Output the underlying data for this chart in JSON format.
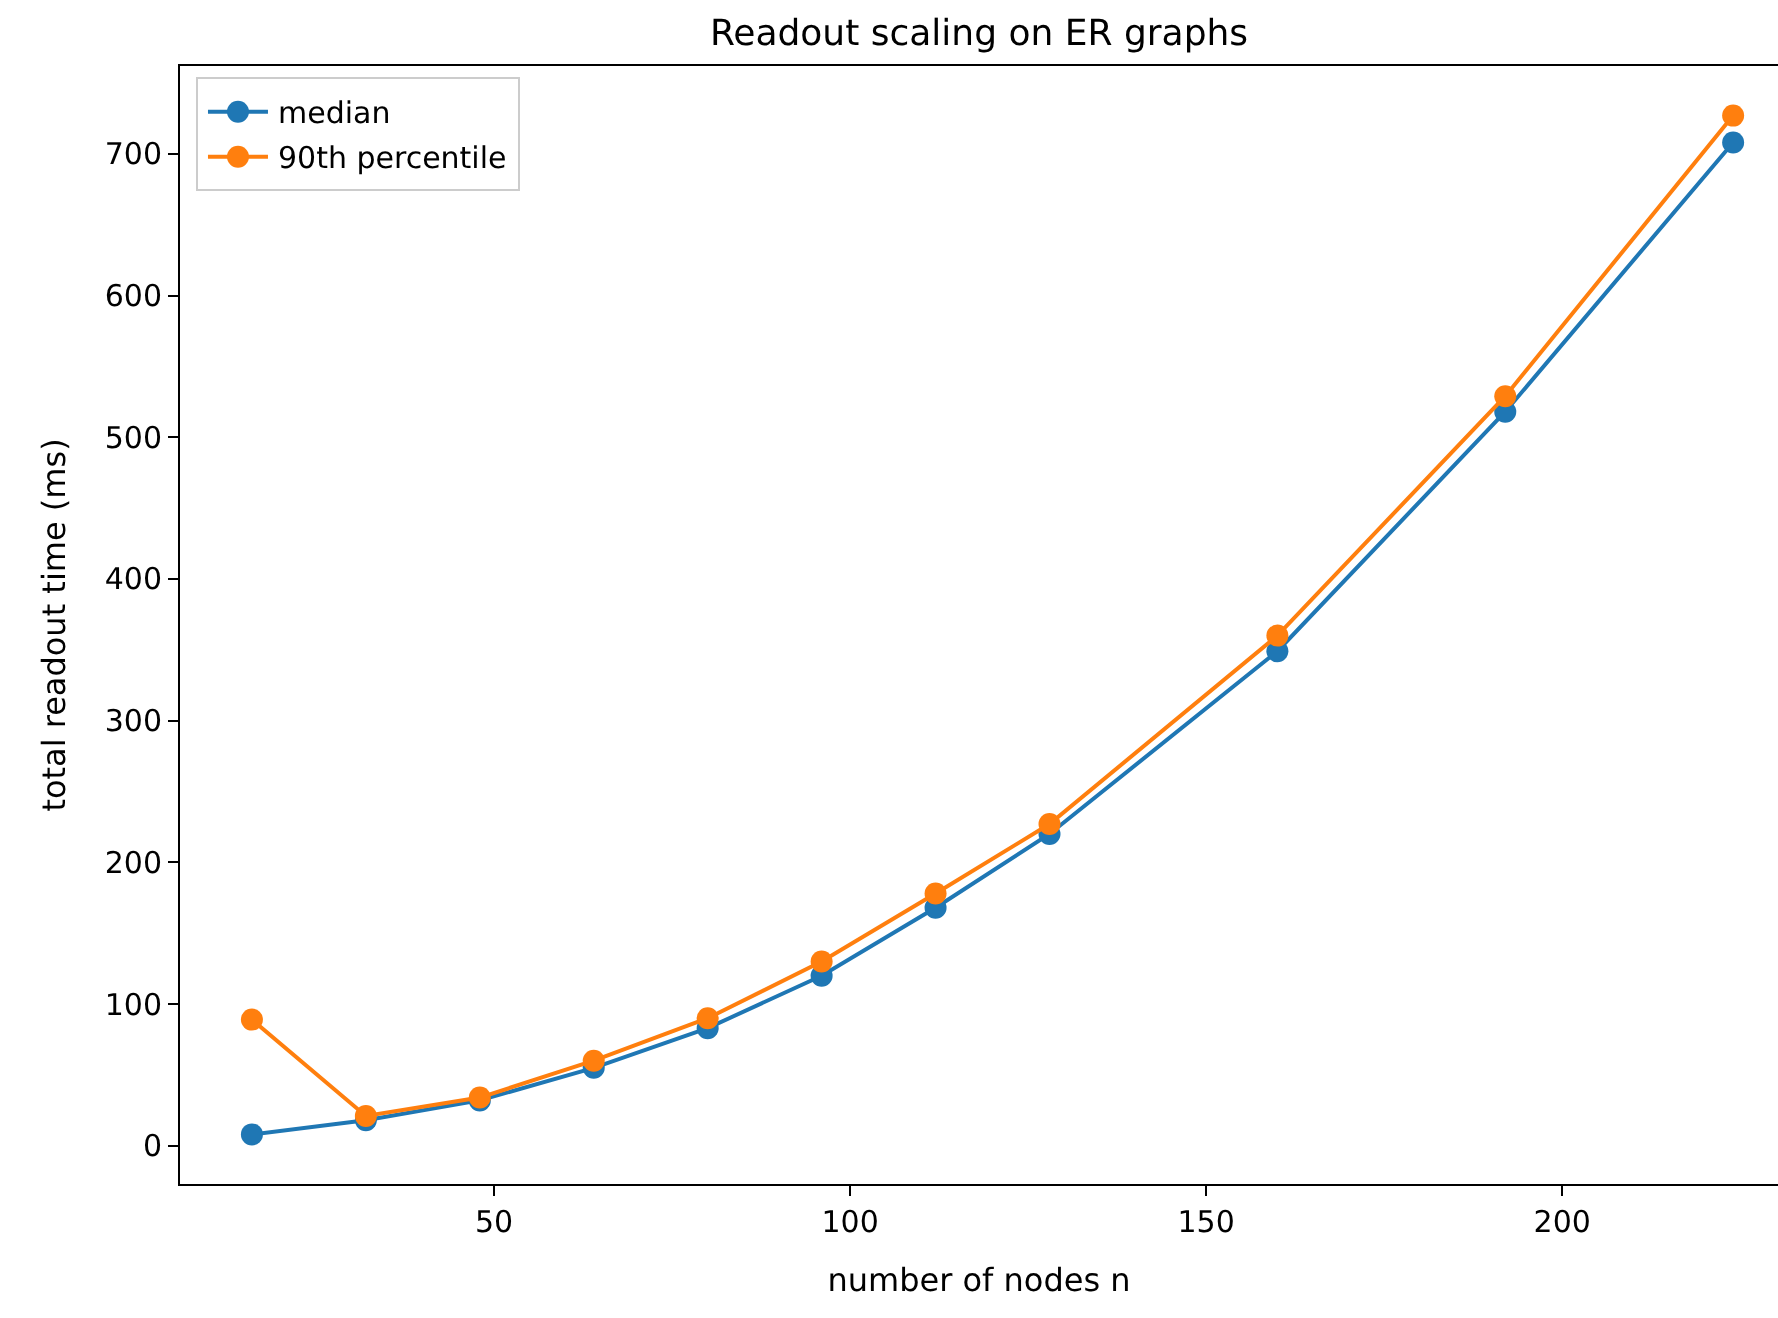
{
  "chart_data": {
    "type": "line",
    "title": "Readout scaling on ER graphs",
    "xlabel": "number of nodes n",
    "ylabel": "total readout time (ms)",
    "x": [
      16,
      32,
      48,
      64,
      80,
      96,
      112,
      128,
      160,
      192,
      224
    ],
    "series": [
      {
        "name": "median",
        "color": "#1f77b4",
        "values": [
          8,
          18,
          32,
          55,
          83,
          120,
          168,
          220,
          349,
          518,
          708
        ]
      },
      {
        "name": "90th percentile",
        "color": "#ff7f0e",
        "values": [
          89,
          21,
          34,
          60,
          90,
          130,
          178,
          227,
          360,
          529,
          727
        ]
      }
    ],
    "xlim": [
      5.9,
      230.3
    ],
    "ylim": [
      -27,
      762
    ],
    "xticks": [
      50,
      100,
      150,
      200
    ],
    "yticks": [
      0,
      100,
      200,
      300,
      400,
      500,
      600,
      700
    ],
    "legend": "top left",
    "marker": "circle",
    "line_style": "solid"
  }
}
